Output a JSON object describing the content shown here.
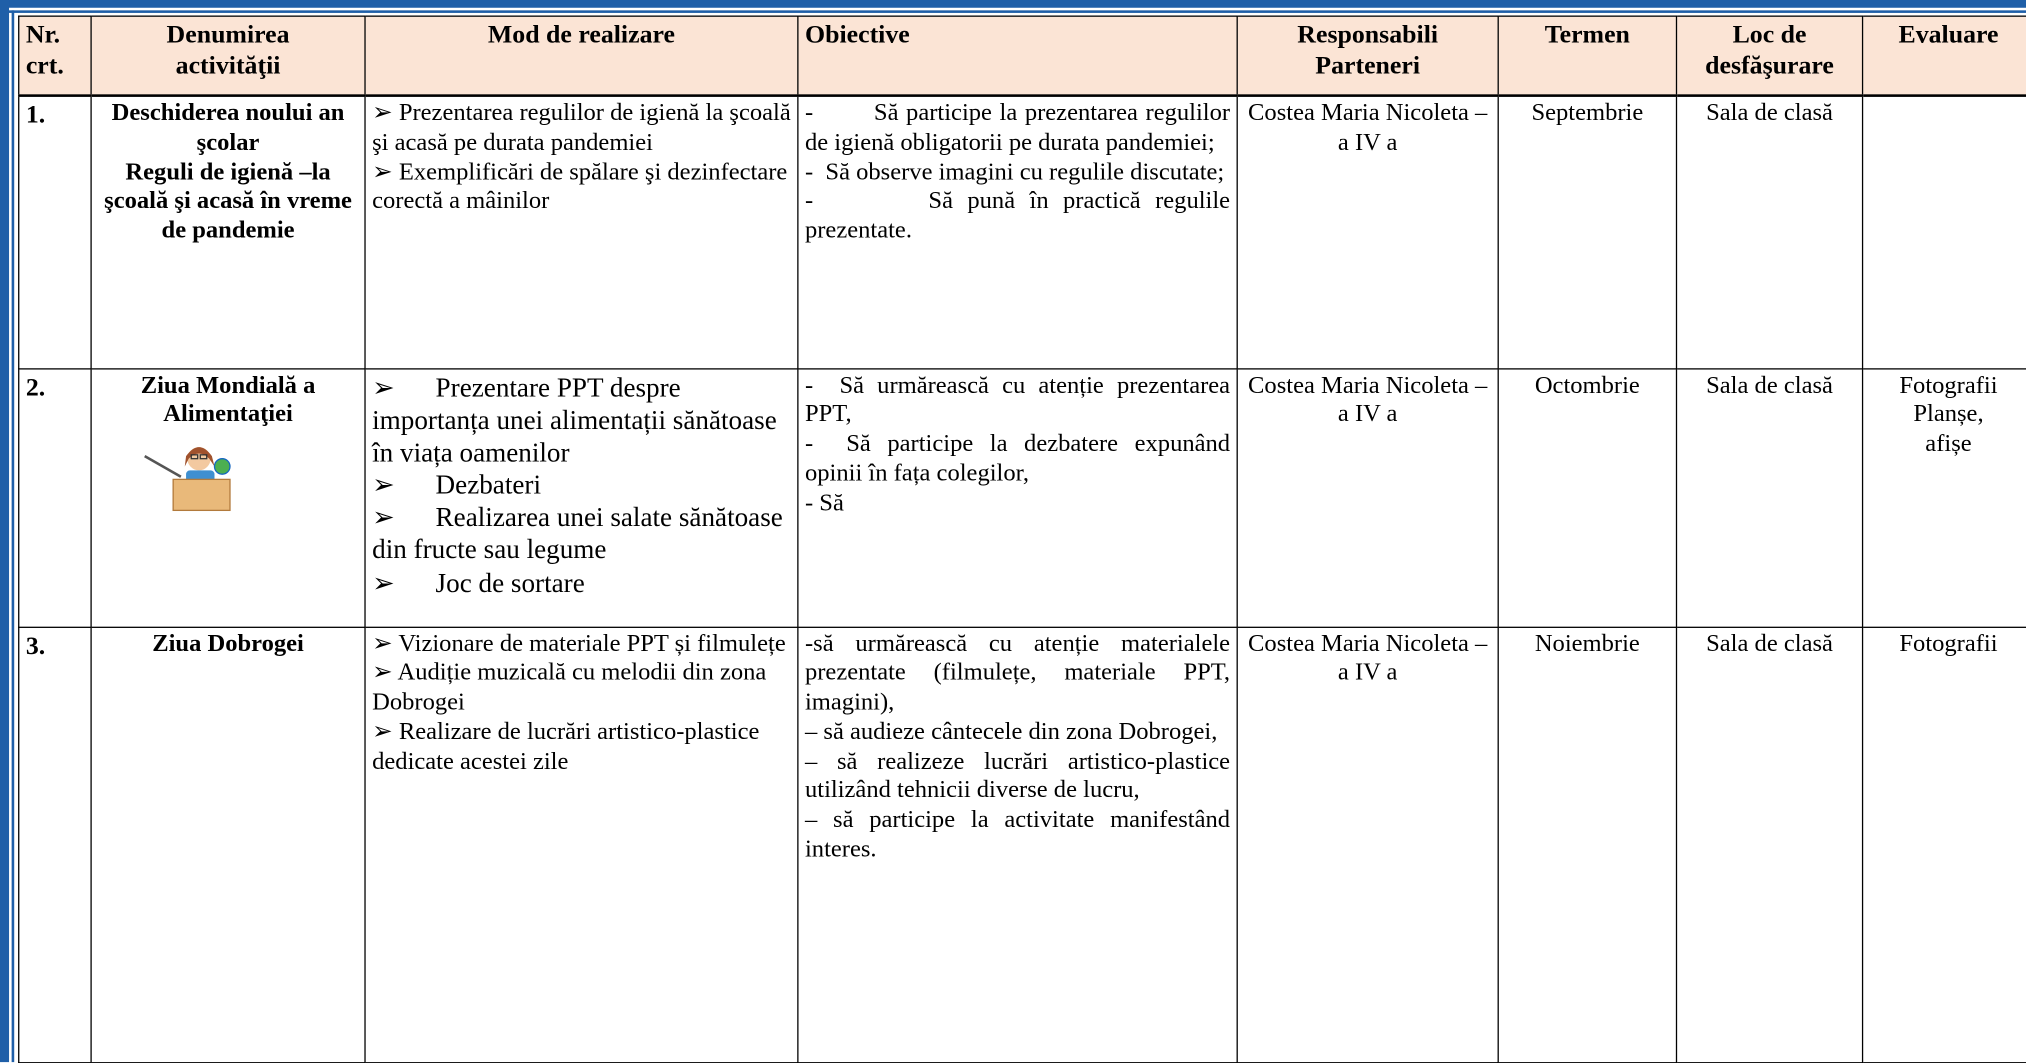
{
  "table": {
    "header": [
      [
        "Nr.",
        "crt."
      ],
      [
        "Denumirea",
        "activităţii"
      ],
      [
        "Mod de realizare"
      ],
      [
        "Obiective"
      ],
      [
        "Responsabili",
        "Parteneri"
      ],
      [
        "Termen"
      ],
      [
        "Loc de",
        "desfăşurare"
      ],
      [
        "Evaluare"
      ]
    ],
    "rows": [
      {
        "nr": "1.",
        "name": [
          "Deschiderea noului an şcolar",
          "Reguli de igienă –la şcoală şi acasă în vreme de pandemie"
        ],
        "mode": [
          "➢ Prezentarea regulilor de igienă la şcoală şi acasă pe durata pandemiei",
          "➢ Exemplificări de spălare şi dezinfectare corectă a mâinilor"
        ],
        "objectives": [
          "-        Să participe la prezentarea regulilor de igienă obligatorii pe durata pandemiei;",
          "-  Să observe imagini cu regulile discutate;",
          "-        Să pună în practică regulile prezentate."
        ],
        "responsible": "Costea Maria Nicoleta – a IV a",
        "term": "Septembrie",
        "place": "Sala de clasă"
      },
      {
        "nr": "2.",
        "name": [
          "Ziua Mondială a Alimentaţiei"
        ],
        "mode": [
          "➢      Prezentare PPT despre importanța unei alimentații sănătoase în viața oamenilor",
          "➢      Dezbateri",
          "➢      Realizarea unei salate sănătoase din fructe sau legume",
          "➢      Joc de sortare"
        ],
        "objectives": [
          "-  Să urmărească cu atenție prezentarea PPT,",
          "-  Să participe la dezbatere expunând opinii în fața colegilor,",
          "- Să"
        ],
        "responsible": "Costea Maria Nicoleta – a IV a",
        "term": "Octombrie",
        "place": "Sala de clasă",
        "evaluation": [
          "Fotografii",
          "Planșe,",
          "afișe"
        ]
      },
      {
        "nr": "3.",
        "name": [
          "Ziua Dobrogei"
        ],
        "mode": [
          "➢ Vizionare de materiale PPT și filmulețe",
          "➢ Audiție muzicală cu melodii din zona Dobrogei",
          "➢ Realizare de lucrări artistico-plastice dedicate acestei zile"
        ],
        "objectives": [
          "-să urmărească cu atenție materialele prezentate (filmulețe, materiale PPT, imagini),",
          "– să audieze cântecele din zona Dobrogei,",
          "– să realizeze lucrări artistico-plastice utilizând tehnicii diverse de lucru,",
          "– să participe la activitate manifestând interes."
        ],
        "responsible": "Costea Maria Nicoleta – a IV a",
        "term": "Noiembrie",
        "place": "Sala de clasă",
        "evaluation": [
          "Fotografii"
        ]
      }
    ]
  }
}
